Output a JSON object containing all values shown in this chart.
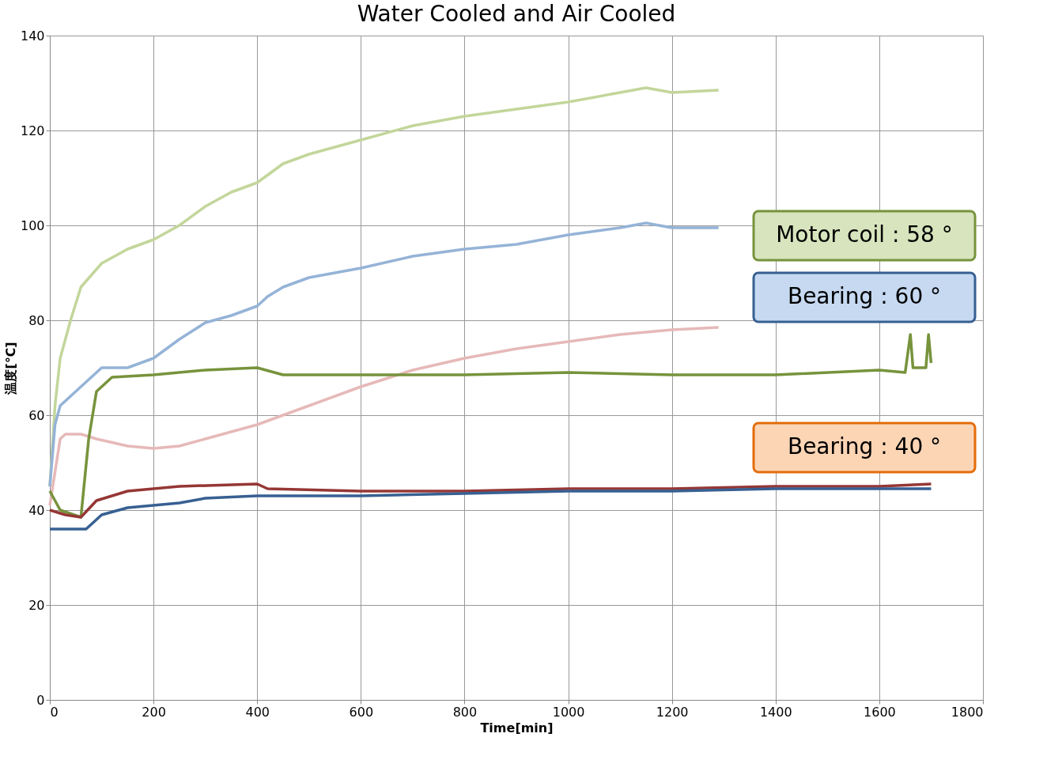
{
  "chart_data": {
    "type": "line",
    "title": "Water Cooled and Air Cooled",
    "xlabel": "Time[min]",
    "ylabel": "温度[℃]",
    "xlim": [
      0,
      1800
    ],
    "xticks": [
      0,
      200,
      400,
      600,
      800,
      1000,
      1200,
      1400,
      1600,
      1800
    ],
    "ylim": [
      0,
      140
    ],
    "yticks": [
      0,
      20,
      40,
      60,
      80,
      100,
      120,
      140
    ],
    "grid": true,
    "legend": false,
    "marker": "none",
    "line_style": "solid",
    "series": [
      {
        "color": "#c3d69b",
        "x": [
          0,
          10,
          20,
          40,
          60,
          100,
          150,
          200,
          250,
          300,
          350,
          400,
          450,
          500,
          600,
          700,
          800,
          900,
          1000,
          1100,
          1150,
          1200,
          1290
        ],
        "values": [
          45,
          62,
          72,
          80,
          87,
          92,
          95,
          97,
          100,
          104,
          107,
          109,
          113,
          115,
          118,
          121,
          123,
          124.5,
          126,
          128,
          129,
          128,
          128.5
        ]
      },
      {
        "color": "#95b3d7",
        "x": [
          0,
          10,
          20,
          50,
          100,
          150,
          200,
          250,
          300,
          350,
          400,
          420,
          450,
          500,
          600,
          700,
          800,
          900,
          1000,
          1100,
          1150,
          1200,
          1290
        ],
        "values": [
          45,
          58,
          62,
          65,
          70,
          70,
          72,
          76,
          79.5,
          81,
          83,
          85,
          87,
          89,
          91,
          93.5,
          95,
          96,
          98,
          99.5,
          100.5,
          99.5,
          99.5
        ]
      },
      {
        "color": "#e6b9b8",
        "x": [
          0,
          20,
          30,
          60,
          90,
          150,
          200,
          250,
          300,
          400,
          500,
          600,
          700,
          800,
          900,
          1000,
          1100,
          1200,
          1290
        ],
        "values": [
          41,
          55,
          56,
          56,
          55,
          53.5,
          53,
          53.5,
          55,
          58,
          62,
          66,
          69.5,
          72,
          74,
          75.5,
          77,
          78,
          78.5
        ]
      },
      {
        "color": "#77933c",
        "x": [
          0,
          20,
          60,
          75,
          90,
          120,
          200,
          300,
          400,
          450,
          600,
          800,
          1000,
          1200,
          1400,
          1600,
          1650,
          1660,
          1665,
          1690,
          1695,
          1700
        ],
        "values": [
          44,
          40,
          38.5,
          55,
          65,
          68,
          68.5,
          69.5,
          70,
          68.5,
          68.5,
          68.5,
          69,
          68.5,
          68.5,
          69.5,
          69,
          77,
          70,
          70,
          77,
          71
        ]
      },
      {
        "color": "#953735",
        "x": [
          0,
          30,
          60,
          90,
          150,
          250,
          400,
          420,
          600,
          800,
          1000,
          1200,
          1400,
          1600,
          1700
        ],
        "values": [
          40,
          39,
          38.5,
          42,
          44,
          45,
          45.5,
          44.5,
          44,
          44,
          44.5,
          44.5,
          45,
          45,
          45.5
        ]
      },
      {
        "color": "#376092",
        "x": [
          0,
          70,
          100,
          150,
          250,
          300,
          400,
          600,
          800,
          1000,
          1200,
          1400,
          1600,
          1700
        ],
        "values": [
          36,
          36,
          39,
          40.5,
          41.5,
          42.5,
          43,
          43,
          43.5,
          44,
          44,
          44.5,
          44.5,
          44.5
        ]
      }
    ],
    "annotations": [
      "Motor coil : 58 °",
      "Bearing : 60 °",
      "Bearing : 40 °"
    ]
  }
}
